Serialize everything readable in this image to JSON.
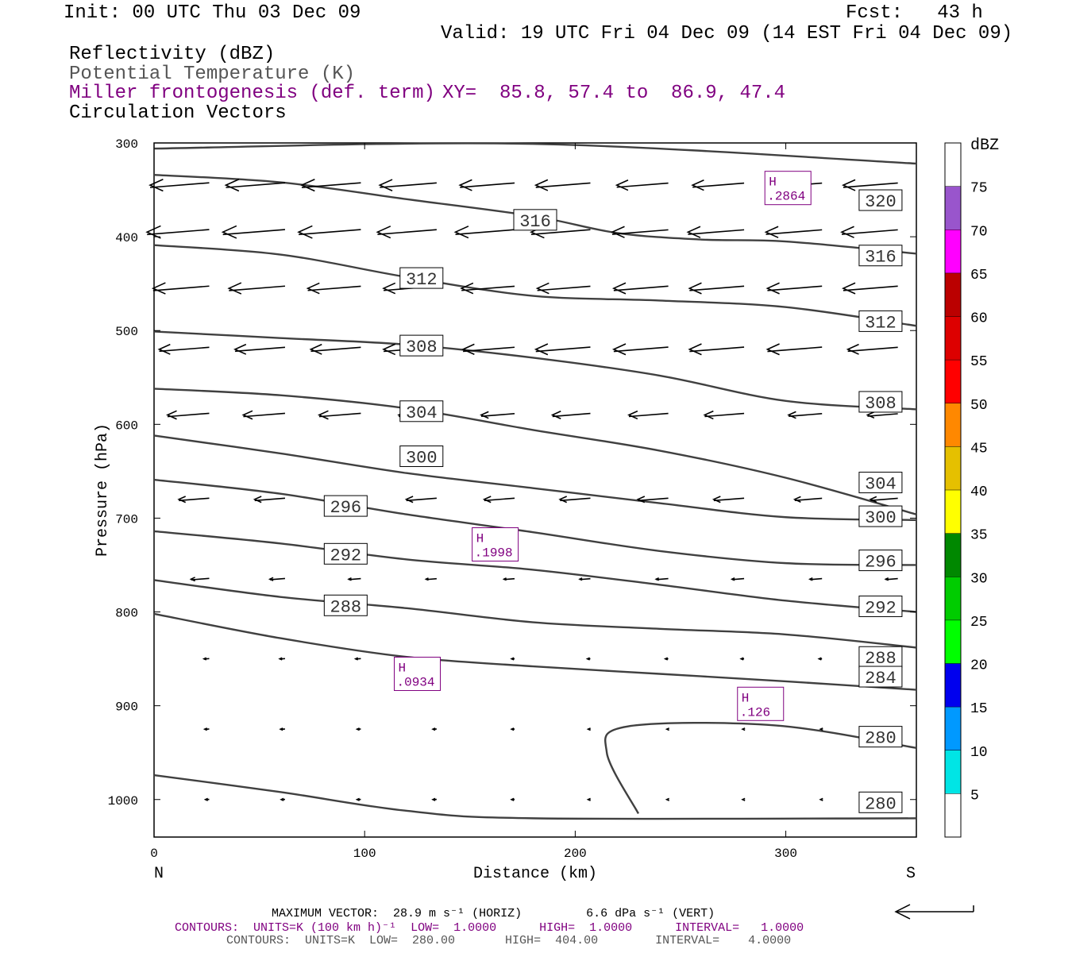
{
  "header": {
    "init": "Init: 00 UTC Thu 03 Dec 09",
    "fcst": "Fcst:   43 h",
    "valid": "Valid: 19 UTC Fri 04 Dec 09 (14 EST Fri 04 Dec 09)",
    "field1": "Reflectivity (dBZ)",
    "field2": "Potential Temperature (K)",
    "field3": "Miller frontogenesis (def. term)",
    "xy": "XY=  85.8, 57.4 to  86.9, 47.4",
    "field4": "Circulation Vectors"
  },
  "colors": {
    "theta_line": "#404040",
    "fronto": "#800080"
  },
  "chart_data": {
    "type": "cross-section",
    "xlabel": "Distance (km)",
    "ylabel": "Pressure (hPa)",
    "xlim": [
      0,
      362
    ],
    "ylim": [
      300,
      1040
    ],
    "xticks": [
      0,
      100,
      200,
      300
    ],
    "yticks": [
      300,
      400,
      500,
      600,
      700,
      800,
      900,
      1000
    ],
    "left_end_label": "N",
    "right_end_label": "S",
    "theta_contours": [
      {
        "label": "320",
        "points": [
          [
            0,
            306
          ],
          [
            180,
            301
          ],
          [
            362,
            322
          ]
        ],
        "labels_at": [
          [
            345,
            361
          ]
        ]
      },
      {
        "label": "316",
        "points": [
          [
            0,
            334
          ],
          [
            60,
            342
          ],
          [
            120,
            360
          ],
          [
            180,
            378
          ],
          [
            220,
            396
          ],
          [
            260,
            403
          ],
          [
            300,
            405
          ],
          [
            362,
            418
          ]
        ],
        "labels_at": [
          [
            181,
            382
          ],
          [
            345,
            420
          ]
        ]
      },
      {
        "label": "312",
        "points": [
          [
            0,
            409
          ],
          [
            60,
            419
          ],
          [
            120,
            443
          ],
          [
            180,
            463
          ],
          [
            240,
            468
          ],
          [
            300,
            475
          ],
          [
            362,
            495
          ]
        ],
        "labels_at": [
          [
            127,
            444
          ],
          [
            345,
            490
          ]
        ]
      },
      {
        "label": "308",
        "points": [
          [
            0,
            501
          ],
          [
            60,
            508
          ],
          [
            120,
            515
          ],
          [
            180,
            529
          ],
          [
            240,
            548
          ],
          [
            300,
            575
          ],
          [
            362,
            584
          ]
        ],
        "labels_at": [
          [
            127,
            516
          ],
          [
            345,
            576
          ]
        ]
      },
      {
        "label": "304",
        "points": [
          [
            0,
            562
          ],
          [
            60,
            569
          ],
          [
            120,
            583
          ],
          [
            180,
            606
          ],
          [
            240,
            628
          ],
          [
            300,
            657
          ],
          [
            362,
            696
          ]
        ],
        "labels_at": [
          [
            127,
            586
          ],
          [
            345,
            662
          ]
        ]
      },
      {
        "label": "300",
        "points": [
          [
            0,
            612
          ],
          [
            60,
            631
          ],
          [
            120,
            652
          ],
          [
            180,
            668
          ],
          [
            240,
            684
          ],
          [
            300,
            699
          ],
          [
            362,
            702
          ]
        ],
        "labels_at": [
          [
            127,
            634
          ],
          [
            345,
            698
          ]
        ]
      },
      {
        "label": "296",
        "points": [
          [
            0,
            659
          ],
          [
            60,
            674
          ],
          [
            120,
            696
          ],
          [
            180,
            715
          ],
          [
            240,
            735
          ],
          [
            300,
            748
          ],
          [
            362,
            750
          ]
        ],
        "labels_at": [
          [
            91,
            687
          ],
          [
            345,
            745
          ]
        ]
      },
      {
        "label": "292",
        "points": [
          [
            0,
            714
          ],
          [
            60,
            727
          ],
          [
            120,
            744
          ],
          [
            180,
            755
          ],
          [
            240,
            771
          ],
          [
            300,
            788
          ],
          [
            362,
            800
          ]
        ],
        "labels_at": [
          [
            91,
            738
          ],
          [
            345,
            794
          ]
        ]
      },
      {
        "label": "288",
        "points": [
          [
            0,
            766
          ],
          [
            60,
            784
          ],
          [
            120,
            796
          ],
          [
            180,
            811
          ],
          [
            240,
            818
          ],
          [
            300,
            824
          ],
          [
            362,
            838
          ]
        ],
        "labels_at": [
          [
            91,
            793
          ],
          [
            345,
            848
          ]
        ]
      },
      {
        "label": "284",
        "points": [
          [
            0,
            802
          ],
          [
            60,
            828
          ],
          [
            120,
            848
          ],
          [
            180,
            858
          ],
          [
            240,
            866
          ],
          [
            300,
            874
          ],
          [
            362,
            883
          ]
        ],
        "labels_at": [
          [
            345,
            869
          ]
        ]
      },
      {
        "label": "280",
        "points": [
          [
            0,
            974
          ],
          [
            60,
            992
          ],
          [
            120,
            1012
          ],
          [
            180,
            1020
          ],
          [
            362,
            1020
          ]
        ],
        "labels_at": [
          [
            345,
            1003
          ]
        ]
      },
      {
        "label": "280",
        "points": [
          [
            230,
            1015
          ],
          [
            215,
            950
          ],
          [
            225,
            922
          ],
          [
            295,
            921
          ],
          [
            362,
            945
          ]
        ],
        "labels_at": [
          [
            345,
            933
          ]
        ]
      }
    ],
    "frontogenesis_highs": [
      {
        "label": "H",
        "value": ".2864",
        "x": 301,
        "p": 348
      },
      {
        "label": "H",
        "value": ".1998",
        "x": 162,
        "p": 728
      },
      {
        "label": "H",
        "value": ".0934",
        "x": 125,
        "p": 866
      },
      {
        "label": "H",
        "value": ".126",
        "x": 288,
        "p": 898
      }
    ],
    "vector_grid": {
      "x": [
        10,
        46,
        82,
        118,
        155,
        191,
        228,
        264,
        301,
        337
      ],
      "p": [
        345,
        395,
        455,
        520,
        590,
        680,
        765,
        850,
        925,
        1000
      ]
    },
    "vectors_note": "westward circulation vectors, strongest aloft",
    "vector_lengths": [
      [
        0.78,
        0.78,
        0.78,
        0.75,
        0.72,
        0.72,
        0.68,
        0.68,
        0.68,
        0.72
      ],
      [
        0.82,
        0.82,
        0.82,
        0.78,
        0.78,
        0.78,
        0.74,
        0.74,
        0.74,
        0.74
      ],
      [
        0.74,
        0.74,
        0.7,
        0.7,
        0.7,
        0.7,
        0.72,
        0.72,
        0.72,
        0.72
      ],
      [
        0.66,
        0.66,
        0.66,
        0.7,
        0.68,
        0.72,
        0.72,
        0.72,
        0.72,
        0.66
      ],
      [
        0.55,
        0.55,
        0.55,
        0.5,
        0.44,
        0.5,
        0.52,
        0.52,
        0.44,
        0.4
      ],
      [
        0.4,
        0.4,
        0.38,
        0.4,
        0.4,
        0.4,
        0.4,
        0.4,
        0.36,
        0.36
      ],
      [
        0.24,
        0.2,
        0.16,
        0.14,
        0.14,
        0.14,
        0.16,
        0.16,
        0.16,
        0.16
      ],
      [
        0.07,
        0.07,
        0.07,
        0.06,
        0.04,
        0.04,
        0.04,
        0.04,
        0.04,
        0.04
      ],
      [
        0.06,
        0.06,
        0.05,
        0.05,
        0.04,
        0.03,
        0.02,
        0.02,
        0.02,
        0.02
      ],
      [
        0.05,
        0.05,
        0.05,
        0.05,
        0.04,
        0.03,
        0.02,
        0.02,
        0.02,
        0.02
      ]
    ],
    "colorbar": {
      "title": "dBZ",
      "levels": [
        5,
        10,
        15,
        20,
        25,
        30,
        35,
        40,
        45,
        50,
        55,
        60,
        65,
        70,
        75
      ],
      "colors": [
        "#ffffff",
        "#00e5e5",
        "#0099ff",
        "#0000ee",
        "#00ff00",
        "#00cc00",
        "#008800",
        "#ffff00",
        "#e5c000",
        "#ff8800",
        "#ff0000",
        "#dd0000",
        "#bb0000",
        "#ff00ff",
        "#9955cc",
        "#ffffff"
      ]
    }
  },
  "footer": {
    "line1": "MAXIMUM VECTOR:  28.9 m s⁻¹ (HORIZ)         6.6 dPa s⁻¹ (VERT)",
    "line2": "CONTOURS:  UNITS=K (100 km h)⁻¹  LOW=  1.0000      HIGH=  1.0000      INTERVAL=   1.0000",
    "line3": "CONTOURS:  UNITS=K  LOW=  280.00       HIGH=  404.00        INTERVAL=    4.0000"
  }
}
